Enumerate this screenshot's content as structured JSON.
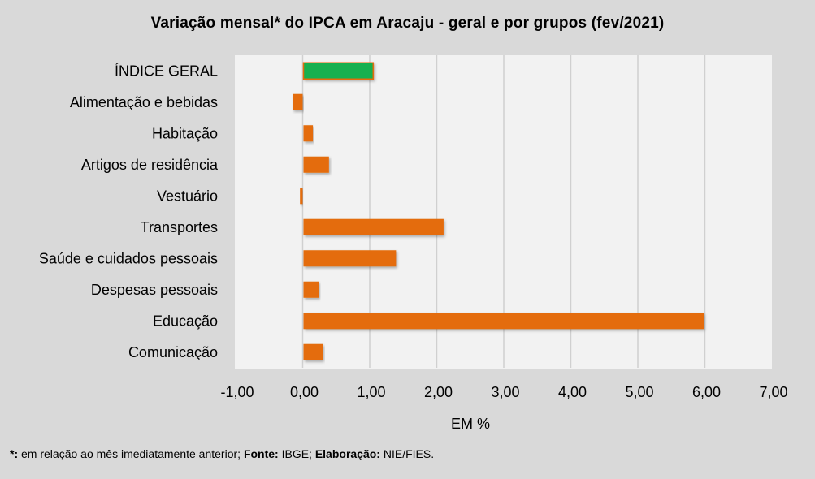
{
  "chart_data": {
    "type": "bar",
    "orientation": "horizontal",
    "title": "Variação  mensal* do IPCA em Aracaju  - geral e por grupos  (fev/2021)",
    "xlabel": "EM %",
    "ylabel": "",
    "categories": [
      "ÍNDICE GERAL",
      "Alimentação e bebidas",
      "Habitação",
      "Artigos de residência",
      "Vestuário",
      "Transportes",
      "Saúde e cuidados pessoais",
      "Despesas pessoais",
      "Educação",
      "Comunicação"
    ],
    "values": [
      1.04,
      -0.15,
      0.14,
      0.38,
      -0.04,
      2.09,
      1.38,
      0.23,
      5.97,
      0.29
    ],
    "highlight_index": 0,
    "xlim": [
      -1,
      7
    ],
    "xticks": [
      -1,
      0,
      1,
      2,
      3,
      4,
      5,
      6,
      7
    ],
    "xtick_labels": [
      "-1,00",
      "0,00",
      "1,00",
      "2,00",
      "3,00",
      "4,00",
      "5,00",
      "6,00",
      "7,00"
    ],
    "grid": true,
    "legend": "none",
    "colors": {
      "highlight": "#12b04f",
      "default": "#e46c0a",
      "plot_bg": "#f2f2f2",
      "page_bg": "#d9d9d9",
      "grid": "#d0d0d0"
    }
  },
  "footnote": {
    "marker": "*:",
    "text1": " em relação ao mês imediatamente  anterior; ",
    "source_label": "Fonte:",
    "source": " IBGE; ",
    "elab_label": "Elaboração:",
    "elab": " NIE/FIES."
  }
}
